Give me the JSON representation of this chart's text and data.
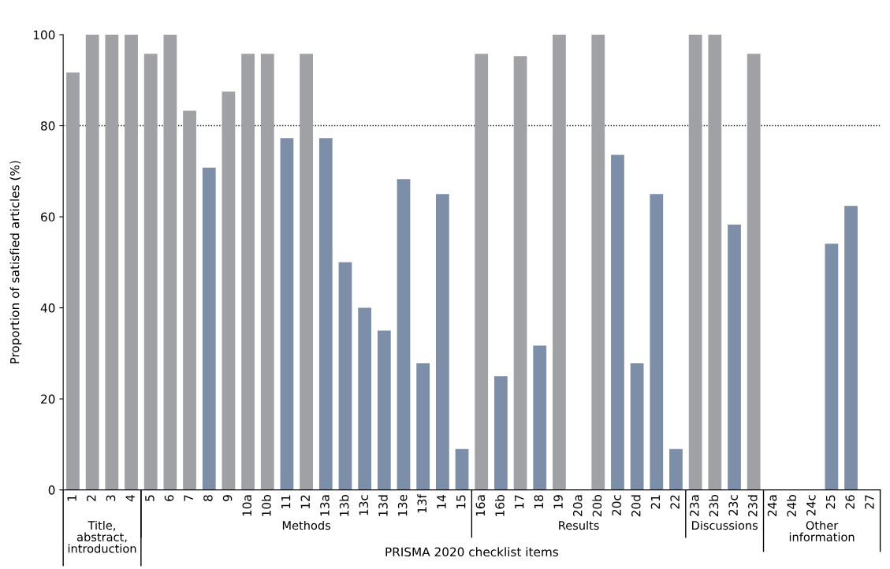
{
  "chart_data": {
    "type": "bar",
    "xlabel": "PRISMA 2020 checklist items",
    "ylabel": "Proportion of satisfied articles (%)",
    "categories": [
      "1",
      "2",
      "3",
      "4",
      "5",
      "6",
      "7",
      "8",
      "9",
      "10a",
      "10b",
      "11",
      "12",
      "13a",
      "13b",
      "13c",
      "13d",
      "13e",
      "13f",
      "14",
      "15",
      "16a",
      "16b",
      "17",
      "18",
      "19",
      "20a",
      "20b",
      "20c",
      "20d",
      "21",
      "22",
      "23a",
      "23b",
      "23c",
      "23d",
      "24a",
      "24b",
      "24c",
      "25",
      "26",
      "27"
    ],
    "values": [
      91.7,
      100,
      100,
      100,
      95.8,
      100,
      83.3,
      70.8,
      87.5,
      95.8,
      95.8,
      77.3,
      95.8,
      77.3,
      50,
      40,
      35,
      68.3,
      27.8,
      65,
      9,
      95.8,
      25,
      95.3,
      31.7,
      100,
      0,
      100,
      73.6,
      27.8,
      65,
      9,
      100,
      100,
      58.3,
      95.8,
      0,
      0,
      0,
      54.1,
      62.4,
      0
    ],
    "colors": [
      "#a0a1a5",
      "#a0a1a5",
      "#a0a1a5",
      "#a0a1a5",
      "#a0a1a5",
      "#a0a1a5",
      "#a0a1a5",
      "#7d8fa8",
      "#a0a1a5",
      "#a0a1a5",
      "#a0a1a5",
      "#7d8fa8",
      "#a0a1a5",
      "#7d8fa8",
      "#7d8fa8",
      "#7d8fa8",
      "#7d8fa8",
      "#7d8fa8",
      "#7d8fa8",
      "#7d8fa8",
      "#7d8fa8",
      "#a0a1a5",
      "#7d8fa8",
      "#a0a1a5",
      "#7d8fa8",
      "#a0a1a5",
      "#a0a1a5",
      "#a0a1a5",
      "#7d8fa8",
      "#7d8fa8",
      "#7d8fa8",
      "#7d8fa8",
      "#a0a1a5",
      "#a0a1a5",
      "#7d8fa8",
      "#a0a1a5",
      "#7d8fa8",
      "#7d8fa8",
      "#7d8fa8",
      "#7d8fa8",
      "#7d8fa8",
      "#7d8fa8"
    ],
    "ylim": [
      0,
      100
    ],
    "yticks": [
      0,
      20,
      40,
      60,
      80,
      100
    ],
    "ref_lines": [
      {
        "axis": "y",
        "value": 80,
        "line_style": "dotted",
        "color": "#000000"
      }
    ],
    "annotations": [
      "Title, abstract, introduction",
      "Methods",
      "Results",
      "Discussions",
      "Other information"
    ],
    "grid": false,
    "legend": false
  }
}
